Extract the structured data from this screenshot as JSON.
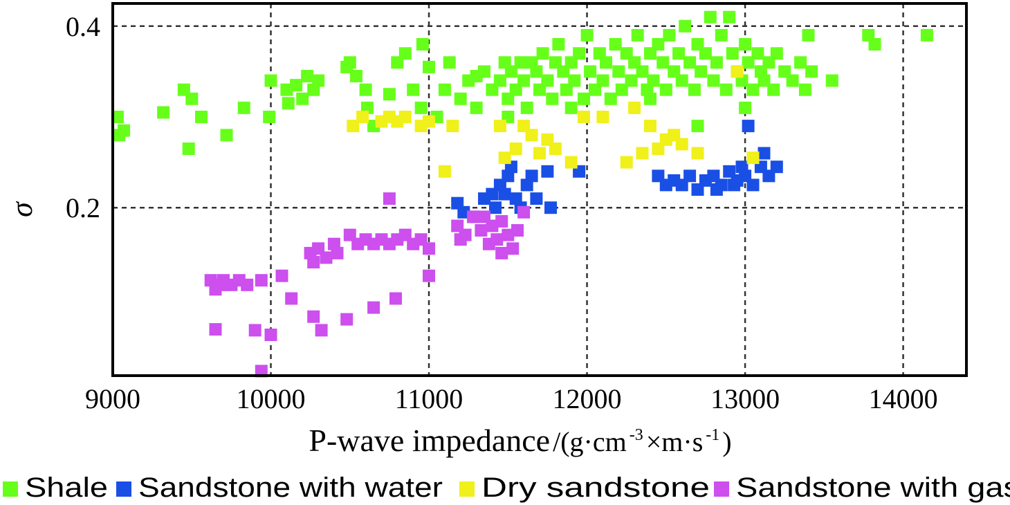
{
  "chart_data": {
    "type": "scatter",
    "title": "",
    "xlabel": "P-wave impedance",
    "xlabel_unit": "/(g·cm",
    "xlabel_unit_exp1": "-3",
    "xlabel_unit_mid": "×m·s",
    "xlabel_unit_exp2": "-1",
    "xlabel_unit_end": ")",
    "ylabel": "σ",
    "xlim": [
      9000,
      14400
    ],
    "ylim": [
      0.015,
      0.425
    ],
    "x_ticks": [
      9000,
      10000,
      11000,
      12000,
      13000,
      14000
    ],
    "x_tick_labels": [
      "9000",
      "10000",
      "11000",
      "12000",
      "13000",
      "14000"
    ],
    "y_ticks": [
      0.2,
      0.4
    ],
    "y_tick_labels": [
      "0.2",
      "0.4"
    ],
    "grid": "dashed at tick positions",
    "legend_position": "bottom",
    "series": [
      {
        "name": "Shale",
        "color": "#66ff1a",
        "points": [
          [
            9030,
            0.3
          ],
          [
            9040,
            0.28
          ],
          [
            9070,
            0.285
          ],
          [
            9320,
            0.305
          ],
          [
            9450,
            0.33
          ],
          [
            9480,
            0.265
          ],
          [
            9500,
            0.32
          ],
          [
            9560,
            0.3
          ],
          [
            9720,
            0.28
          ],
          [
            9830,
            0.31
          ],
          [
            9990,
            0.3
          ],
          [
            10000,
            0.34
          ],
          [
            10100,
            0.33
          ],
          [
            10110,
            0.315
          ],
          [
            10160,
            0.335
          ],
          [
            10200,
            0.32
          ],
          [
            10230,
            0.345
          ],
          [
            10270,
            0.33
          ],
          [
            10300,
            0.34
          ],
          [
            10480,
            0.355
          ],
          [
            10500,
            0.36
          ],
          [
            10540,
            0.345
          ],
          [
            10600,
            0.33
          ],
          [
            10610,
            0.31
          ],
          [
            10650,
            0.29
          ],
          [
            10750,
            0.325
          ],
          [
            10800,
            0.36
          ],
          [
            10850,
            0.37
          ],
          [
            10900,
            0.33
          ],
          [
            10950,
            0.31
          ],
          [
            10960,
            0.38
          ],
          [
            11000,
            0.355
          ],
          [
            11050,
            0.3
          ],
          [
            11100,
            0.33
          ],
          [
            11130,
            0.36
          ],
          [
            11200,
            0.32
          ],
          [
            11250,
            0.34
          ],
          [
            11300,
            0.345
          ],
          [
            11350,
            0.35
          ],
          [
            11400,
            0.33
          ],
          [
            11450,
            0.34
          ],
          [
            11480,
            0.36
          ],
          [
            11500,
            0.32
          ],
          [
            11520,
            0.35
          ],
          [
            11550,
            0.33
          ],
          [
            11580,
            0.36
          ],
          [
            11600,
            0.34
          ],
          [
            11620,
            0.31
          ],
          [
            11650,
            0.36
          ],
          [
            11680,
            0.35
          ],
          [
            11700,
            0.33
          ],
          [
            11720,
            0.37
          ],
          [
            11750,
            0.34
          ],
          [
            11780,
            0.32
          ],
          [
            11800,
            0.36
          ],
          [
            11820,
            0.38
          ],
          [
            11850,
            0.35
          ],
          [
            11870,
            0.33
          ],
          [
            11900,
            0.36
          ],
          [
            11920,
            0.34
          ],
          [
            11950,
            0.37
          ],
          [
            11980,
            0.32
          ],
          [
            12000,
            0.39
          ],
          [
            12020,
            0.35
          ],
          [
            12050,
            0.33
          ],
          [
            12080,
            0.37
          ],
          [
            12100,
            0.34
          ],
          [
            12120,
            0.36
          ],
          [
            12150,
            0.32
          ],
          [
            12180,
            0.38
          ],
          [
            12200,
            0.35
          ],
          [
            12220,
            0.33
          ],
          [
            12250,
            0.37
          ],
          [
            12280,
            0.34
          ],
          [
            12300,
            0.36
          ],
          [
            12320,
            0.39
          ],
          [
            12350,
            0.35
          ],
          [
            12380,
            0.33
          ],
          [
            12400,
            0.37
          ],
          [
            12420,
            0.34
          ],
          [
            12450,
            0.38
          ],
          [
            12480,
            0.36
          ],
          [
            12500,
            0.33
          ],
          [
            12520,
            0.39
          ],
          [
            12550,
            0.35
          ],
          [
            12580,
            0.37
          ],
          [
            12600,
            0.34
          ],
          [
            12620,
            0.4
          ],
          [
            12650,
            0.36
          ],
          [
            12680,
            0.33
          ],
          [
            12700,
            0.38
          ],
          [
            12720,
            0.35
          ],
          [
            12750,
            0.37
          ],
          [
            12780,
            0.41
          ],
          [
            12800,
            0.34
          ],
          [
            12820,
            0.36
          ],
          [
            12850,
            0.39
          ],
          [
            12880,
            0.33
          ],
          [
            12900,
            0.41
          ],
          [
            12920,
            0.37
          ],
          [
            12950,
            0.35
          ],
          [
            12980,
            0.34
          ],
          [
            13000,
            0.38
          ],
          [
            13020,
            0.36
          ],
          [
            13050,
            0.33
          ],
          [
            13080,
            0.37
          ],
          [
            13100,
            0.35
          ],
          [
            13120,
            0.34
          ],
          [
            13150,
            0.36
          ],
          [
            13180,
            0.33
          ],
          [
            13200,
            0.37
          ],
          [
            13250,
            0.35
          ],
          [
            13300,
            0.34
          ],
          [
            13350,
            0.36
          ],
          [
            13380,
            0.33
          ],
          [
            13420,
            0.35
          ],
          [
            13400,
            0.39
          ],
          [
            13550,
            0.34
          ],
          [
            13780,
            0.39
          ],
          [
            13820,
            0.38
          ],
          [
            14150,
            0.39
          ],
          [
            11300,
            0.31
          ],
          [
            11500,
            0.3
          ],
          [
            11900,
            0.31
          ],
          [
            12400,
            0.32
          ],
          [
            12700,
            0.29
          ],
          [
            13000,
            0.31
          ]
        ]
      },
      {
        "name": "Sandstone with water",
        "color": "#1a4fe6",
        "points": [
          [
            11180,
            0.205
          ],
          [
            11220,
            0.195
          ],
          [
            11280,
            0.19
          ],
          [
            11350,
            0.21
          ],
          [
            11400,
            0.215
          ],
          [
            11420,
            0.2
          ],
          [
            11450,
            0.225
          ],
          [
            11480,
            0.215
          ],
          [
            11500,
            0.235
          ],
          [
            11520,
            0.245
          ],
          [
            11550,
            0.21
          ],
          [
            11580,
            0.2
          ],
          [
            11620,
            0.225
          ],
          [
            11650,
            0.235
          ],
          [
            11680,
            0.21
          ],
          [
            11750,
            0.24
          ],
          [
            11770,
            0.2
          ],
          [
            11950,
            0.24
          ],
          [
            12450,
            0.235
          ],
          [
            12500,
            0.225
          ],
          [
            12550,
            0.23
          ],
          [
            12600,
            0.225
          ],
          [
            12650,
            0.235
          ],
          [
            12700,
            0.22
          ],
          [
            12750,
            0.23
          ],
          [
            12800,
            0.235
          ],
          [
            12850,
            0.225
          ],
          [
            12900,
            0.24
          ],
          [
            12950,
            0.23
          ],
          [
            12980,
            0.245
          ],
          [
            13000,
            0.235
          ],
          [
            13050,
            0.225
          ],
          [
            13100,
            0.245
          ],
          [
            13120,
            0.26
          ],
          [
            13150,
            0.235
          ],
          [
            13200,
            0.245
          ],
          [
            13020,
            0.29
          ],
          [
            12930,
            0.225
          ],
          [
            12820,
            0.22
          ]
        ]
      },
      {
        "name": "Dry sandstone",
        "color": "#f0f01a",
        "points": [
          [
            10520,
            0.29
          ],
          [
            10580,
            0.3
          ],
          [
            10700,
            0.295
          ],
          [
            10750,
            0.3
          ],
          [
            10800,
            0.295
          ],
          [
            10850,
            0.3
          ],
          [
            10950,
            0.29
          ],
          [
            11000,
            0.295
          ],
          [
            11100,
            0.24
          ],
          [
            11150,
            0.29
          ],
          [
            11450,
            0.29
          ],
          [
            11480,
            0.255
          ],
          [
            11550,
            0.265
          ],
          [
            11600,
            0.29
          ],
          [
            11650,
            0.28
          ],
          [
            11700,
            0.26
          ],
          [
            11750,
            0.275
          ],
          [
            11800,
            0.265
          ],
          [
            11900,
            0.25
          ],
          [
            11980,
            0.3
          ],
          [
            12100,
            0.3
          ],
          [
            12250,
            0.25
          ],
          [
            12300,
            0.31
          ],
          [
            12350,
            0.26
          ],
          [
            12400,
            0.29
          ],
          [
            12450,
            0.265
          ],
          [
            12500,
            0.275
          ],
          [
            12550,
            0.28
          ],
          [
            12600,
            0.27
          ],
          [
            12700,
            0.26
          ],
          [
            13050,
            0.255
          ],
          [
            12950,
            0.35
          ]
        ]
      },
      {
        "name": "Sandstone with gas",
        "color": "#cc4fee",
        "points": [
          [
            9620,
            0.12
          ],
          [
            9650,
            0.11
          ],
          [
            9680,
            0.115
          ],
          [
            9700,
            0.12
          ],
          [
            9750,
            0.115
          ],
          [
            9800,
            0.12
          ],
          [
            9850,
            0.115
          ],
          [
            9900,
            0.065
          ],
          [
            9650,
            0.066
          ],
          [
            9940,
            0.12
          ],
          [
            10000,
            0.06
          ],
          [
            10070,
            0.125
          ],
          [
            10130,
            0.1
          ],
          [
            10250,
            0.15
          ],
          [
            10270,
            0.14
          ],
          [
            10300,
            0.155
          ],
          [
            10350,
            0.145
          ],
          [
            10400,
            0.16
          ],
          [
            10420,
            0.15
          ],
          [
            10500,
            0.17
          ],
          [
            10550,
            0.16
          ],
          [
            10600,
            0.165
          ],
          [
            10650,
            0.16
          ],
          [
            10700,
            0.165
          ],
          [
            10750,
            0.16
          ],
          [
            10800,
            0.165
          ],
          [
            10850,
            0.17
          ],
          [
            10900,
            0.16
          ],
          [
            10950,
            0.165
          ],
          [
            11000,
            0.155
          ],
          [
            10750,
            0.21
          ],
          [
            10270,
            0.08
          ],
          [
            10320,
            0.065
          ],
          [
            10480,
            0.077
          ],
          [
            10650,
            0.09
          ],
          [
            10790,
            0.1
          ],
          [
            9940,
            0.02
          ],
          [
            11000,
            0.125
          ],
          [
            11180,
            0.18
          ],
          [
            11230,
            0.17
          ],
          [
            11280,
            0.19
          ],
          [
            11330,
            0.175
          ],
          [
            11380,
            0.16
          ],
          [
            11400,
            0.18
          ],
          [
            11430,
            0.165
          ],
          [
            11460,
            0.185
          ],
          [
            11500,
            0.17
          ],
          [
            11530,
            0.155
          ],
          [
            11560,
            0.175
          ],
          [
            11600,
            0.195
          ],
          [
            11460,
            0.15
          ],
          [
            11200,
            0.165
          ],
          [
            11350,
            0.19
          ]
        ]
      }
    ]
  }
}
